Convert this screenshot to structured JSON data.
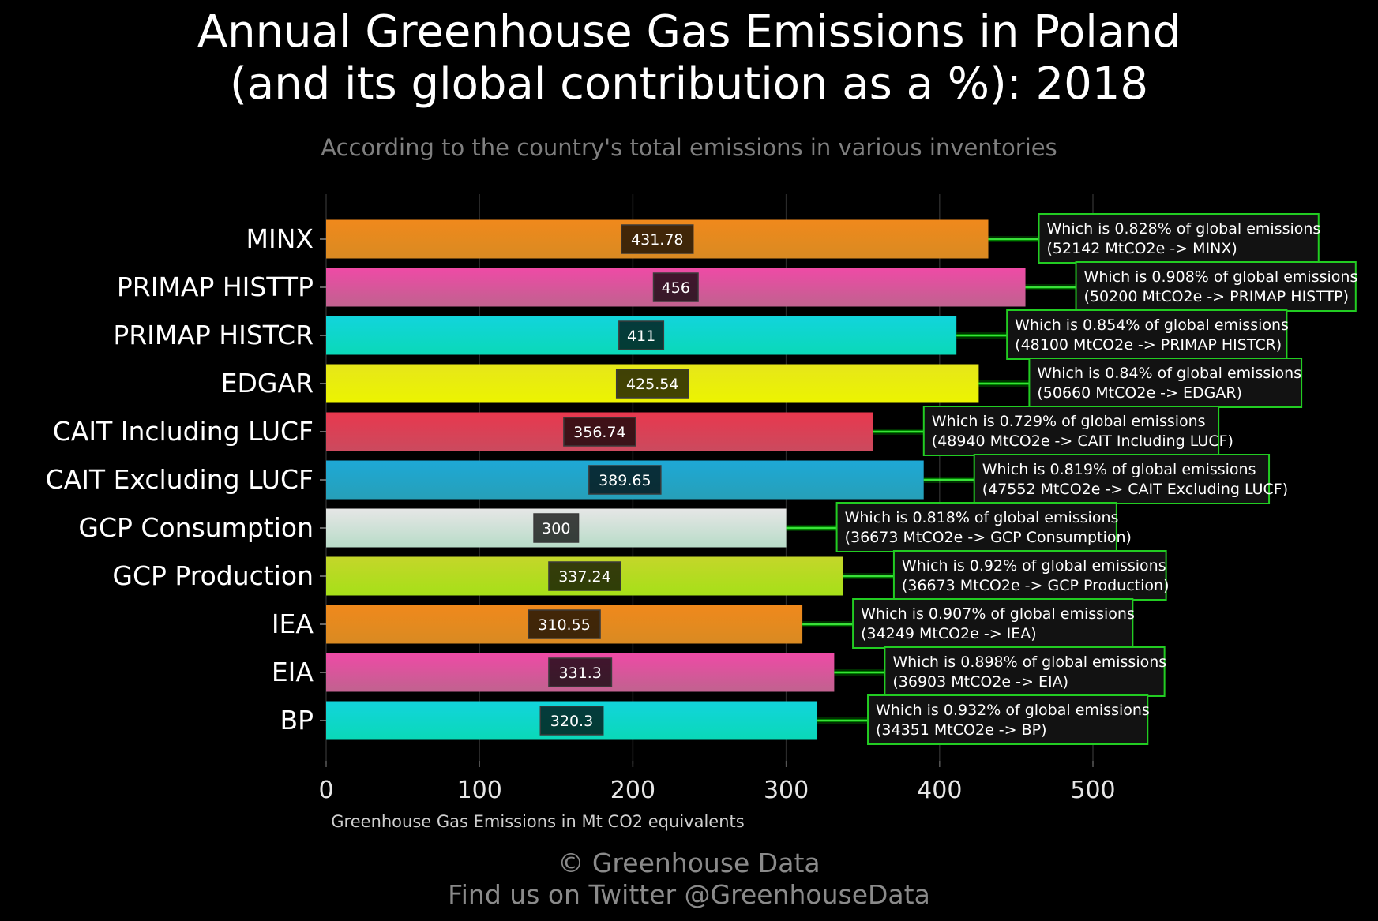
{
  "header": {
    "title": "Annual Greenhouse Gas Emissions in Poland\n(and its global contribution as a %): 2018",
    "subtitle": "According to the country's total emissions in various inventories"
  },
  "footer": {
    "line1": "© Greenhouse Data",
    "line2": "Find us on Twitter @GreenhouseData"
  },
  "chart_data": {
    "type": "bar",
    "orientation": "horizontal",
    "xlabel": "Greenhouse Gas Emissions in Mt CO2 equivalents",
    "xlim": [
      0,
      550
    ],
    "xticks": [
      0,
      100,
      200,
      300,
      400,
      500
    ],
    "grid": true,
    "categories": [
      "MINX",
      "PRIMAP HISTTP",
      "PRIMAP HISTCR",
      "EDGAR",
      "CAIT Including LUCF",
      "CAIT Excluding LUCF",
      "GCP Consumption",
      "GCP Production",
      "IEA",
      "EIA",
      "BP"
    ],
    "values": [
      431.78,
      456,
      411,
      425.54,
      356.74,
      389.65,
      300,
      337.24,
      310.55,
      331.3,
      320.3
    ],
    "value_labels": [
      "431.78",
      "456",
      "411",
      "425.54",
      "356.74",
      "389.65",
      "300",
      "337.24",
      "310.55",
      "331.3",
      "320.3"
    ],
    "annotations": [
      {
        "line1": "Which is 0.828% of global emissions",
        "line2": "(52142 MtCO2e -> MINX)"
      },
      {
        "line1": "Which is 0.908% of global emissions",
        "line2": "(50200 MtCO2e -> PRIMAP HISTTP)"
      },
      {
        "line1": "Which is 0.854% of global emissions",
        "line2": "(48100 MtCO2e -> PRIMAP HISTCR)"
      },
      {
        "line1": "Which is 0.84% of global emissions",
        "line2": "(50660 MtCO2e -> EDGAR)"
      },
      {
        "line1": "Which is 0.729% of global emissions",
        "line2": "(48940 MtCO2e -> CAIT Including LUCF)"
      },
      {
        "line1": "Which is 0.819% of global emissions",
        "line2": "(47552 MtCO2e -> CAIT Excluding LUCF)"
      },
      {
        "line1": "Which is 0.818% of global emissions",
        "line2": "(36673 MtCO2e -> GCP Consumption)"
      },
      {
        "line1": "Which is 0.92% of global emissions",
        "line2": "(36673 MtCO2e -> GCP Production)"
      },
      {
        "line1": "Which is 0.907% of global emissions",
        "line2": "(34249 MtCO2e -> IEA)"
      },
      {
        "line1": "Which is 0.898% of global emissions",
        "line2": "(36903 MtCO2e -> EIA)"
      },
      {
        "line1": "Which is 0.932% of global emissions",
        "line2": "(34351 MtCO2e -> BP)"
      }
    ],
    "bar_colors": [
      [
        "#f0891c",
        "#d98a22"
      ],
      [
        "#ef4aa6",
        "#c0628f"
      ],
      [
        "#12d4dc",
        "#0ad9b8"
      ],
      [
        "#e6e61a",
        "#ecf400"
      ],
      [
        "#e8384e",
        "#cb4a5e"
      ],
      [
        "#1ea8d6",
        "#26a0b8"
      ],
      [
        "#e6e6e6",
        "#b8dcc8"
      ],
      [
        "#c4d62a",
        "#a6e018"
      ],
      [
        "#f0891c",
        "#d98a22"
      ],
      [
        "#ef4aa6",
        "#c0628f"
      ],
      [
        "#12d4dc",
        "#0ad9b8"
      ]
    ],
    "annotation_border_color": "#22cc22"
  }
}
